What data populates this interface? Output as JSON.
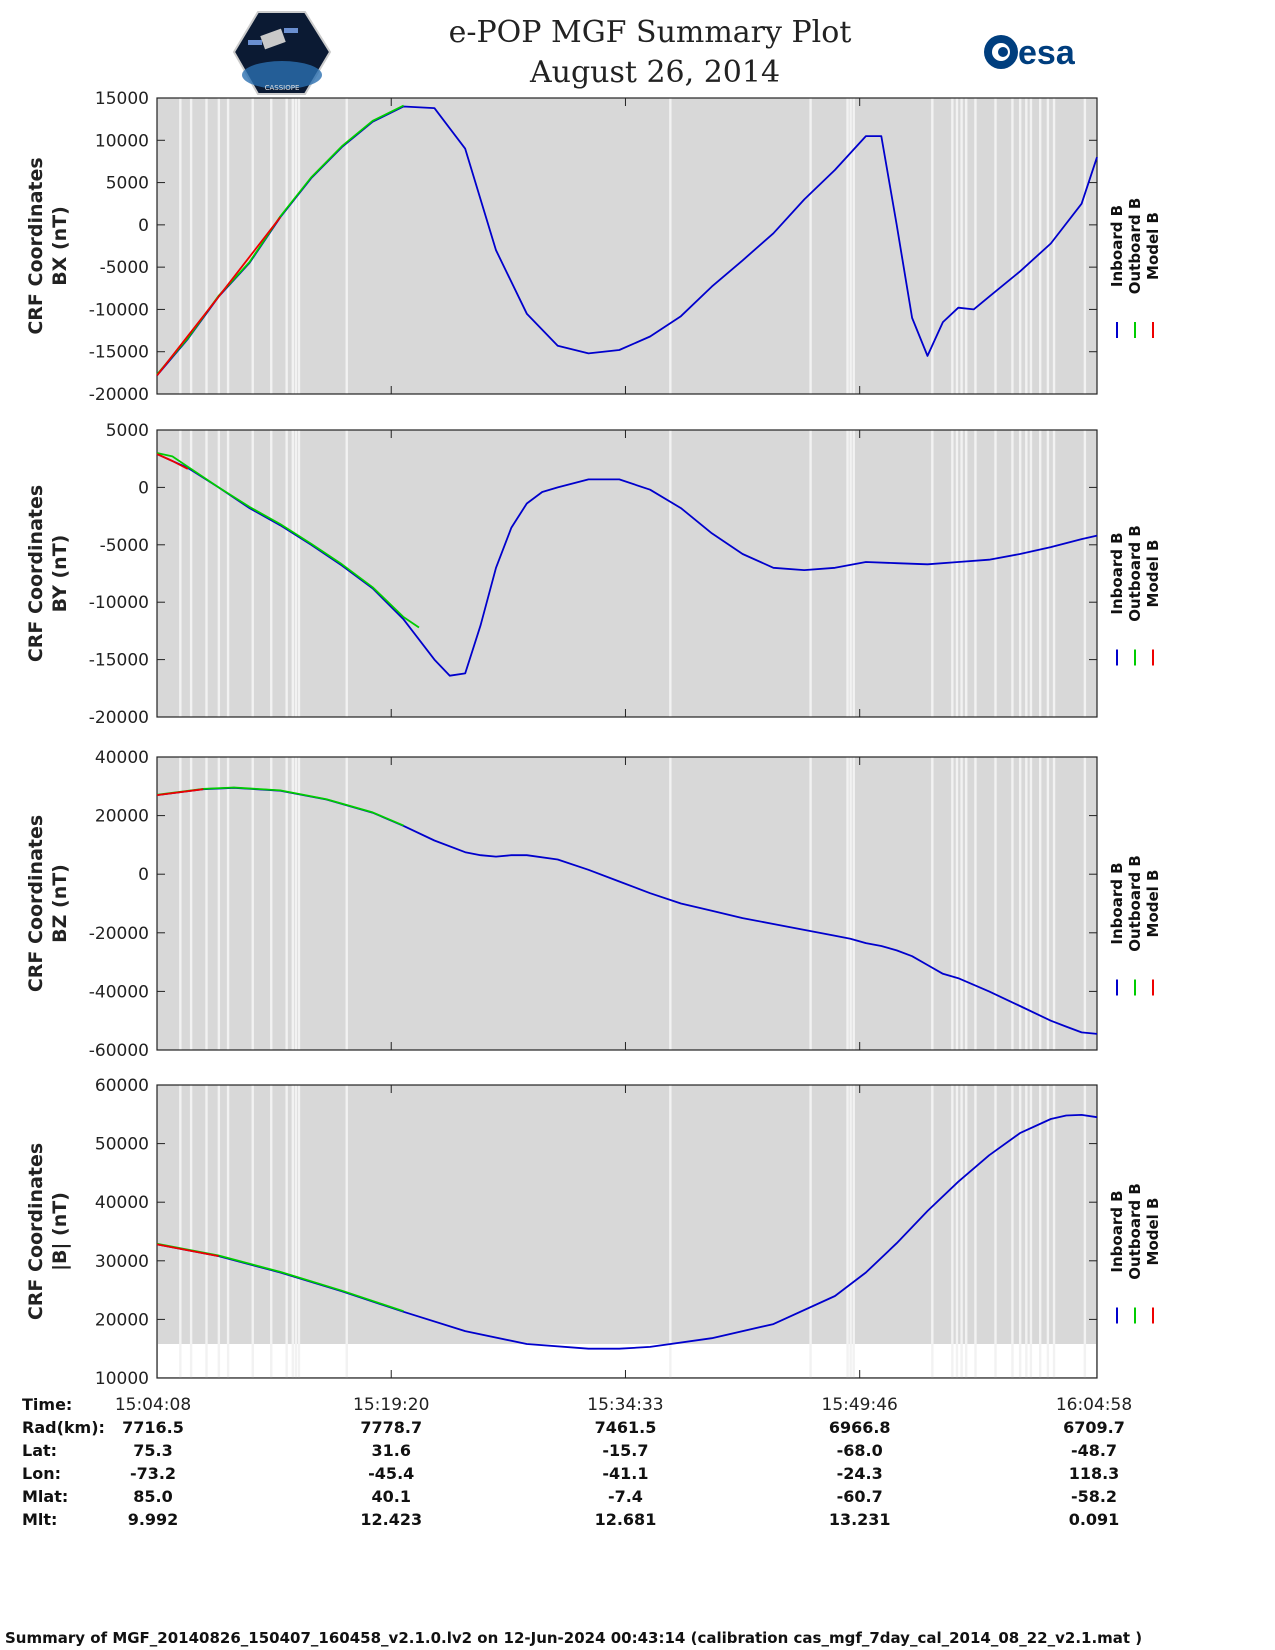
{
  "header": {
    "title_line1": "e-POP MGF Summary Plot",
    "title_line2": "August 26, 2014",
    "left_logo_text": "CASSIOPE",
    "right_logo_text": "esa"
  },
  "colors": {
    "inboard": "#0000cc",
    "outboard": "#00cc00",
    "model": "#ee0000",
    "plot_bg": "#d8d8d8",
    "gap_stripe": "#f2f2f2"
  },
  "legend": [
    "Inboard B",
    "Outboard B",
    "Model B"
  ],
  "chart_data": [
    {
      "type": "line",
      "panel": "BX",
      "ylabel_line1": "CRF Coordinates",
      "ylabel_line2": "BX (nT)",
      "ylim": [
        -20000,
        15000
      ],
      "yticks": [
        15000,
        10000,
        5000,
        0,
        -5000,
        -10000,
        -15000,
        -20000
      ],
      "xlim": [
        0,
        61
      ],
      "series": [
        {
          "name": "Inboard B",
          "x": [
            0,
            2,
            4,
            6,
            8,
            10,
            12,
            14,
            16,
            18,
            20,
            22,
            24,
            26,
            28,
            30,
            32,
            34,
            36,
            38,
            40,
            42,
            44,
            46,
            47,
            48,
            49,
            50,
            51,
            52,
            53,
            54,
            56,
            58,
            60,
            61
          ],
          "values": [
            -17800,
            -13500,
            -8500,
            -4500,
            900,
            5500,
            9200,
            12200,
            14000,
            13800,
            9000,
            -3000,
            -10500,
            -14300,
            -15200,
            -14800,
            -13200,
            -10800,
            -7300,
            -4200,
            -1000,
            3000,
            6500,
            10500,
            10500,
            0,
            -11000,
            -15500,
            -11500,
            -9800,
            -10000,
            -8500,
            -5500,
            -2200,
            2500,
            8000
          ]
        },
        {
          "name": "Outboard B",
          "x": [
            0,
            2,
            4,
            6,
            8,
            10,
            12,
            14,
            16
          ],
          "values": [
            -17700,
            -13400,
            -8400,
            -4400,
            1000,
            5600,
            9300,
            12300,
            14100
          ]
        },
        {
          "name": "Model B",
          "x": [
            0,
            4,
            8
          ],
          "values": [
            -17800,
            -8500,
            900
          ]
        }
      ]
    },
    {
      "type": "line",
      "panel": "BY",
      "ylabel_line1": "CRF Coordinates",
      "ylabel_line2": "BY (nT)",
      "ylim": [
        -20000,
        5000
      ],
      "yticks": [
        5000,
        0,
        -5000,
        -10000,
        -15000,
        -20000
      ],
      "xlim": [
        0,
        61
      ],
      "series": [
        {
          "name": "Inboard B",
          "x": [
            0,
            2,
            4,
            6,
            8,
            10,
            12,
            14,
            16,
            18,
            19,
            20,
            21,
            22,
            23,
            24,
            25,
            26,
            28,
            30,
            32,
            34,
            36,
            38,
            40,
            42,
            44,
            46,
            48,
            50,
            52,
            54,
            56,
            58,
            60,
            61
          ],
          "values": [
            2900,
            1700,
            0,
            -1800,
            -3300,
            -5000,
            -6800,
            -8800,
            -11500,
            -15000,
            -16400,
            -16200,
            -12000,
            -7000,
            -3500,
            -1400,
            -400,
            0,
            700,
            700,
            -200,
            -1800,
            -4000,
            -5800,
            -7000,
            -7200,
            -7000,
            -6500,
            -6600,
            -6700,
            -6500,
            -6300,
            -5800,
            -5200,
            -4500,
            -4200
          ]
        },
        {
          "name": "Outboard B",
          "x": [
            0,
            1,
            2,
            4,
            6,
            8,
            10,
            12,
            14,
            16,
            17
          ],
          "values": [
            3000,
            2700,
            1800,
            0,
            -1700,
            -3200,
            -4900,
            -6700,
            -8700,
            -11300,
            -12200
          ]
        },
        {
          "name": "Model B",
          "x": [
            0,
            1,
            2
          ],
          "values": [
            2900,
            2300,
            1600
          ]
        }
      ]
    },
    {
      "type": "line",
      "panel": "BZ",
      "ylabel_line1": "CRF Coordinates",
      "ylabel_line2": "BZ (nT)",
      "ylim": [
        -60000,
        40000
      ],
      "yticks": [
        40000,
        20000,
        0,
        -20000,
        -40000,
        -60000
      ],
      "xlim": [
        0,
        61
      ],
      "series": [
        {
          "name": "Inboard B",
          "x": [
            0,
            3,
            5,
            8,
            11,
            14,
            16,
            18,
            20,
            21,
            22,
            23,
            24,
            26,
            28,
            30,
            32,
            34,
            36,
            38,
            40,
            42,
            44,
            45,
            46,
            47,
            48,
            49,
            50,
            51,
            52,
            54,
            56,
            58,
            59,
            60,
            61
          ],
          "values": [
            27000,
            29000,
            29500,
            28500,
            25500,
            21000,
            16500,
            11500,
            7500,
            6500,
            6000,
            6500,
            6500,
            5000,
            1500,
            -2500,
            -6500,
            -10000,
            -12500,
            -15000,
            -17000,
            -19000,
            -21000,
            -22000,
            -23500,
            -24500,
            -26000,
            -28000,
            -31000,
            -34000,
            -35500,
            -40000,
            -45000,
            -50000,
            -52000,
            -54000,
            -54500
          ]
        },
        {
          "name": "Outboard B",
          "x": [
            0,
            3,
            5,
            8,
            11,
            14,
            16
          ],
          "values": [
            27100,
            29100,
            29600,
            28600,
            25600,
            21100,
            16600
          ]
        },
        {
          "name": "Model B",
          "x": [
            0,
            3
          ],
          "values": [
            27000,
            29000
          ]
        }
      ]
    },
    {
      "type": "line",
      "panel": "|B|",
      "ylabel_line1": "CRF Coordinates",
      "ylabel_line2": "|B| (nT)",
      "ylim": [
        10000,
        60000
      ],
      "yticks": [
        60000,
        50000,
        40000,
        30000,
        20000,
        10000
      ],
      "xlim": [
        0,
        61
      ],
      "series": [
        {
          "name": "Inboard B",
          "x": [
            0,
            4,
            8,
            12,
            16,
            20,
            24,
            28,
            30,
            32,
            36,
            40,
            44,
            46,
            48,
            50,
            52,
            54,
            56,
            58,
            59,
            60,
            61
          ],
          "values": [
            32800,
            30800,
            28000,
            24800,
            21300,
            18000,
            15800,
            15000,
            15000,
            15300,
            16800,
            19200,
            24000,
            28000,
            33000,
            38500,
            43500,
            48000,
            51800,
            54200,
            54800,
            54900,
            54500
          ]
        },
        {
          "name": "Outboard B",
          "x": [
            0,
            4,
            8,
            12,
            16
          ],
          "values": [
            32900,
            30900,
            28100,
            24900,
            21400
          ]
        },
        {
          "name": "Model B",
          "x": [
            0,
            4
          ],
          "values": [
            32800,
            30800
          ]
        }
      ]
    }
  ],
  "xaxis": {
    "tick_positions": [
      0,
      15.2,
      30.4,
      45.6,
      61
    ],
    "tick_labels": [
      "15:04:08",
      "15:19:20",
      "15:34:33",
      "15:49:46",
      "16:04:58"
    ]
  },
  "gaps": [
    1.5,
    2.2,
    3.2,
    4.0,
    4.6,
    6.2,
    7.4,
    8.4,
    8.8,
    9.0,
    9.2,
    12.3,
    33.3,
    42.4,
    44.8,
    45.0,
    45.2,
    50.3,
    51.6,
    51.9,
    52.2,
    52.5,
    53.1,
    54.4,
    55.5,
    56.0,
    56.4,
    56.7,
    57.3,
    57.8,
    58.2,
    60.2
  ],
  "table": {
    "rows": [
      {
        "label": "Time:",
        "values": [
          "15:04:08",
          "15:19:20",
          "15:34:33",
          "15:49:46",
          "16:04:58"
        ]
      },
      {
        "label": "Rad(km):",
        "values": [
          "7716.5",
          "7778.7",
          "7461.5",
          "6966.8",
          "6709.7"
        ]
      },
      {
        "label": "Lat:",
        "values": [
          "75.3",
          "31.6",
          "-15.7",
          "-68.0",
          "-48.7"
        ]
      },
      {
        "label": "Lon:",
        "values": [
          "-73.2",
          "-45.4",
          "-41.1",
          "-24.3",
          "118.3"
        ]
      },
      {
        "label": "Mlat:",
        "values": [
          "85.0",
          "40.1",
          "-7.4",
          "-60.7",
          "-58.2"
        ]
      },
      {
        "label": "Mlt:",
        "values": [
          "9.992",
          "12.423",
          "12.681",
          "13.231",
          "0.091"
        ]
      }
    ]
  },
  "footer": "Summary of MGF_20140826_150407_160458_v2.1.0.lv2 on 12-Jun-2024 00:43:14 (calibration cas_mgf_7day_cal_2014_08_22_v2.1.mat )"
}
